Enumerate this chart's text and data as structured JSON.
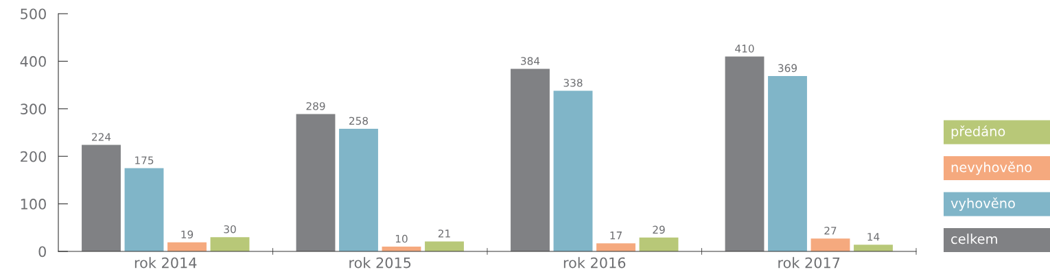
{
  "chart_data": {
    "type": "bar",
    "categories": [
      "rok 2014",
      "rok 2015",
      "rok 2016",
      "rok 2017"
    ],
    "series": [
      {
        "name": "celkem",
        "color": "#808184",
        "values": [
          224,
          289,
          384,
          410
        ]
      },
      {
        "name": "vyhověno",
        "color": "#80b5c8",
        "values": [
          175,
          258,
          338,
          369
        ]
      },
      {
        "name": "nevyhověno",
        "color": "#f5a97e",
        "values": [
          19,
          10,
          17,
          27
        ]
      },
      {
        "name": "předáno",
        "color": "#b8c878",
        "values": [
          30,
          21,
          29,
          14
        ]
      }
    ],
    "ylim": [
      0,
      500
    ],
    "yticks": [
      0,
      100,
      200,
      300,
      400,
      500
    ],
    "grid": false,
    "legend": "right",
    "data_labels": true
  }
}
